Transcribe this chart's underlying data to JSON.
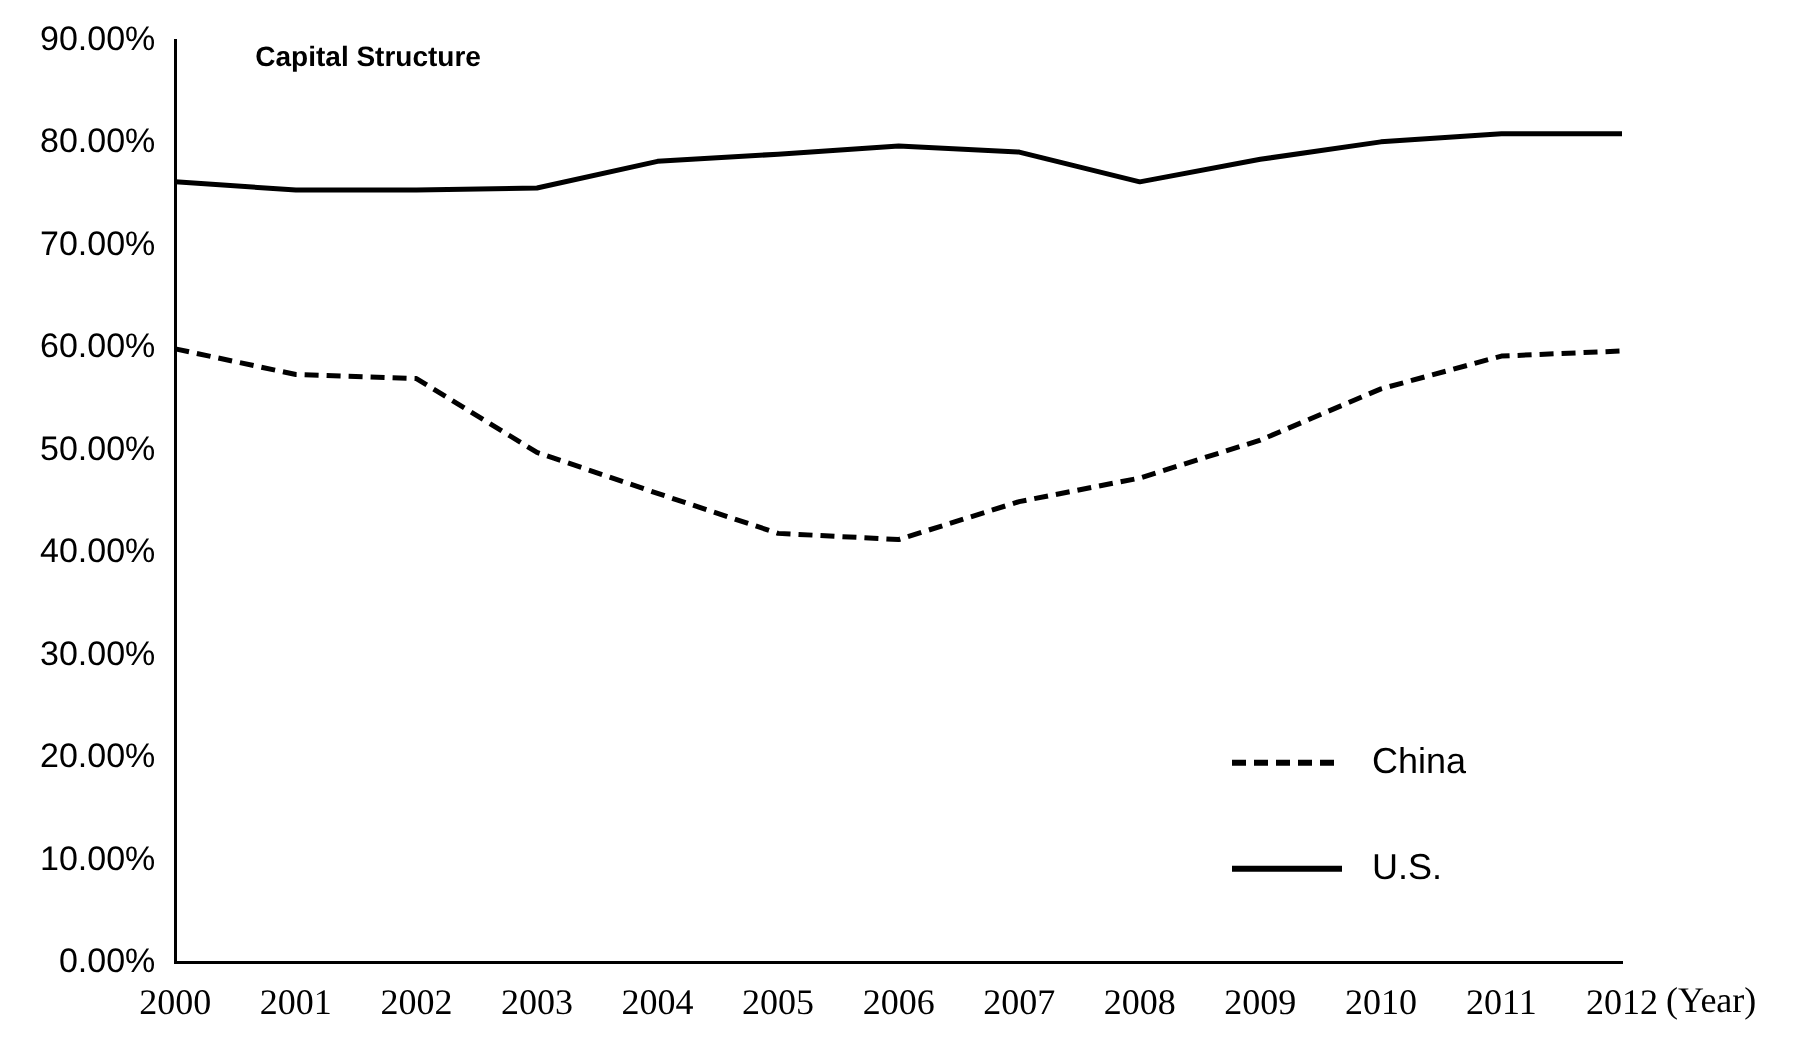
{
  "chart_data": {
    "type": "line",
    "title": "Capital Structure",
    "xlabel": "(Year)",
    "categories": [
      "2000",
      "2001",
      "2002",
      "2003",
      "2004",
      "2005",
      "2006",
      "2007",
      "2008",
      "2009",
      "2010",
      "2011",
      "2012"
    ],
    "series": [
      {
        "name": "China",
        "color": "#000000",
        "line_style": "dashed",
        "values": [
          59.9,
          57.4,
          57.0,
          49.8,
          45.8,
          41.9,
          41.3,
          45.0,
          47.3,
          51.0,
          56.0,
          59.2,
          59.7
        ]
      },
      {
        "name": "U.S.",
        "color": "#000000",
        "line_style": "solid",
        "values": [
          76.2,
          75.4,
          75.4,
          75.6,
          78.2,
          78.9,
          79.7,
          79.1,
          76.2,
          78.4,
          80.1,
          80.9,
          80.9
        ]
      }
    ],
    "ylim": [
      0,
      90
    ],
    "yticks": [
      {
        "value": 0,
        "label": "0.00%"
      },
      {
        "value": 10,
        "label": "10.00%"
      },
      {
        "value": 20,
        "label": "20.00%"
      },
      {
        "value": 30,
        "label": "30.00%"
      },
      {
        "value": 40,
        "label": "40.00%"
      },
      {
        "value": 50,
        "label": "50.00%"
      },
      {
        "value": 60,
        "label": "60.00%"
      },
      {
        "value": 70,
        "label": "70.00%"
      },
      {
        "value": 80,
        "label": "80.00%"
      },
      {
        "value": 90,
        "label": "90.00%"
      }
    ],
    "grid": false,
    "legend": "bottom right",
    "marker": "none"
  }
}
